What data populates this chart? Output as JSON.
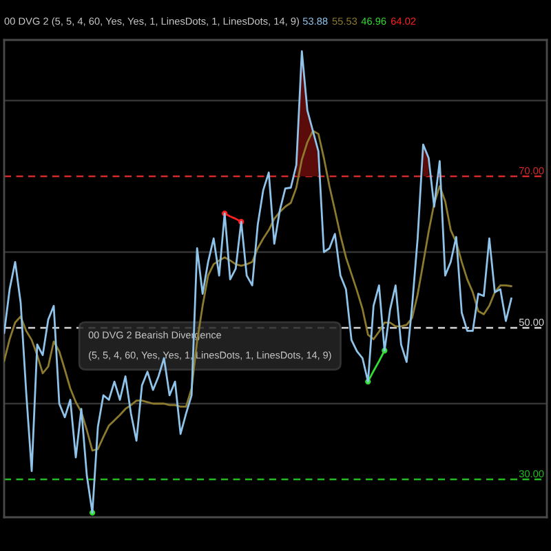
{
  "chart_data": {
    "type": "line",
    "title": "00 DVG 2 (5, 5, 4, 60, Yes, Yes, 1, LinesDots, 1, LinesDots, 14, 9)",
    "categories": [
      null,
      null,
      null,
      null,
      null,
      null,
      null,
      null,
      null,
      null,
      null,
      null,
      null,
      null,
      null,
      null,
      null,
      null,
      null,
      null,
      null,
      null,
      null,
      null,
      null,
      null,
      null,
      null,
      null,
      null,
      null,
      null,
      null,
      null,
      null,
      null,
      null,
      null,
      null,
      null,
      null,
      null,
      null,
      null,
      null,
      null,
      null,
      null,
      null,
      null,
      null,
      null,
      null,
      null,
      null,
      null,
      null,
      null,
      null,
      null,
      null,
      null,
      null,
      null,
      null,
      null,
      null,
      null,
      null,
      null,
      null,
      null,
      null,
      null,
      null,
      null,
      null,
      null,
      null,
      null,
      null,
      null,
      null,
      null,
      null,
      null,
      null,
      null,
      null,
      null,
      null,
      null,
      null
    ],
    "series": [
      {
        "name": "53.88",
        "color": "#8fc3ea",
        "values": [
          49.3,
          55.1,
          58.7,
          53.3,
          41.5,
          31.1,
          47.8,
          46.4,
          51.1,
          52.9,
          40,
          38.2,
          40.5,
          32.9,
          39.3,
          30.5,
          25.6,
          36.9,
          41.1,
          40.5,
          42.9,
          40.5,
          43.6,
          38.7,
          35.1,
          42.4,
          44.2,
          41.8,
          43.6,
          46,
          41.1,
          42.9,
          36,
          38.7,
          41.1,
          60.5,
          54.5,
          58.7,
          61.8,
          56.9,
          65.1,
          56.4,
          57.8,
          64.0,
          56.9,
          55.6,
          63.6,
          68.2,
          70.5,
          61.1,
          65.5,
          68.4,
          68.5,
          71.5,
          86.5,
          78.7,
          76,
          73.3,
          60,
          60.5,
          62.4,
          56.9,
          55.1,
          48.4,
          46.9,
          46,
          42.9,
          52.9,
          55.6,
          47.0,
          52.4,
          55.6,
          47.8,
          45.5,
          52.9,
          61.8,
          74.2,
          72.4,
          66,
          72,
          56.9,
          58.7,
          62,
          52,
          49.6,
          49.6,
          54.5,
          54.2,
          61.8,
          54.7,
          55.1,
          50.9,
          53.9
        ]
      },
      {
        "name": "55.53",
        "color": "#8c7a2e",
        "values": [
          45.6,
          48.5,
          50.7,
          51.5,
          49.6,
          48.4,
          46.4,
          44,
          44.9,
          48.2,
          46.9,
          44.5,
          42,
          40.2,
          38.9,
          36.5,
          33.8,
          34,
          35.6,
          37.1,
          37.8,
          38.5,
          39.3,
          39.8,
          40.4,
          40.4,
          40.2,
          40,
          40,
          40,
          39.8,
          39.8,
          39.6,
          39.6,
          42,
          48.2,
          52.9,
          56.9,
          58.4,
          58.9,
          59.3,
          58.9,
          58.4,
          58.2,
          58.4,
          58.7,
          60.5,
          61.8,
          62.9,
          64.4,
          65.3,
          66,
          66.5,
          68.5,
          72.2,
          74.5,
          76,
          75.6,
          72.4,
          68.7,
          65.5,
          62.2,
          59.3,
          57.1,
          54.9,
          52.5,
          49.1,
          48.5,
          49.5,
          50.7,
          50.7,
          50.2,
          50.2,
          50.4,
          51.3,
          54.4,
          58.5,
          62.7,
          66.4,
          68.7,
          66.7,
          62.9,
          61.3,
          58.7,
          56.4,
          54.7,
          52.2,
          51.8,
          52.9,
          54.7,
          55.6,
          55.6,
          55.5
        ]
      },
      {
        "name": "46.96",
        "color": "#33dd33",
        "marker": "circle",
        "values": [
          null,
          null,
          null,
          null,
          null,
          null,
          null,
          null,
          null,
          null,
          null,
          null,
          null,
          null,
          null,
          null,
          25.6,
          null,
          null,
          null,
          null,
          null,
          null,
          null,
          null,
          null,
          null,
          null,
          null,
          null,
          null,
          null,
          null,
          null,
          null,
          null,
          null,
          null,
          null,
          null,
          null,
          null,
          null,
          null,
          null,
          null,
          null,
          null,
          null,
          null,
          null,
          null,
          null,
          null,
          null,
          null,
          null,
          null,
          null,
          null,
          null,
          null,
          null,
          null,
          null,
          null,
          42.9,
          44.3,
          45.6,
          47.0,
          null,
          null,
          null,
          null,
          null,
          null,
          null,
          null,
          null,
          null,
          null,
          null,
          null,
          null,
          null,
          null,
          null,
          null,
          null,
          null,
          null,
          null,
          null
        ]
      },
      {
        "name": "64.02",
        "color": "#ff2020",
        "marker": "circle",
        "values": [
          null,
          null,
          null,
          null,
          null,
          null,
          null,
          null,
          null,
          null,
          null,
          null,
          null,
          null,
          null,
          null,
          null,
          null,
          null,
          null,
          null,
          null,
          null,
          null,
          null,
          null,
          null,
          null,
          null,
          null,
          null,
          null,
          null,
          null,
          null,
          null,
          null,
          null,
          null,
          null,
          65.1,
          64.7,
          64.4,
          64.0,
          null,
          null,
          null,
          null,
          null,
          null,
          null,
          null,
          null,
          null,
          null,
          null,
          null,
          null,
          null,
          null,
          null,
          null,
          null,
          null,
          null,
          null,
          null,
          null,
          null,
          null,
          null,
          null,
          null,
          null,
          null,
          null,
          null,
          null,
          null,
          null,
          null,
          null,
          null,
          null,
          null,
          null,
          null,
          null,
          null,
          null,
          null,
          null,
          null
        ]
      },
      {
        "color": "#5c0b0b",
        "type": "area",
        "values": [
          null,
          null,
          null,
          null,
          null,
          null,
          null,
          null,
          null,
          null,
          null,
          null,
          null,
          null,
          null,
          null,
          null,
          null,
          null,
          null,
          null,
          null,
          null,
          null,
          null,
          null,
          null,
          null,
          null,
          null,
          null,
          null,
          null,
          null,
          null,
          null,
          null,
          null,
          null,
          null,
          null,
          null,
          null,
          null,
          null,
          null,
          null,
          null,
          null,
          null,
          null,
          null,
          null,
          71.5,
          86.5,
          78.7,
          76,
          73.3,
          null,
          null,
          null,
          null,
          null,
          null,
          null,
          null,
          null,
          null,
          null,
          null,
          null,
          null,
          null,
          null,
          null,
          null,
          74.2,
          72.4,
          null,
          null,
          null,
          null,
          null,
          null,
          null,
          null,
          null,
          null,
          null,
          null,
          null,
          null,
          null
        ]
      }
    ],
    "ref_lines": [
      {
        "axis": "y",
        "value": 70,
        "label": "70.00",
        "color": "#d42a2a",
        "line_style": "dashed"
      },
      {
        "axis": "y",
        "value": 50,
        "label": "50.00",
        "color": "#d8d8d8",
        "line_style": "dashed"
      },
      {
        "axis": "y",
        "value": 30,
        "label": "30.00",
        "color": "#22bb22",
        "line_style": "dashed"
      }
    ],
    "annotations": [
      "00 DVG 2 Bearish Divergence",
      "(5, 5, 4, 60, Yes, Yes, 1, LinesDots, 1, LinesDots, 14, 9)"
    ],
    "ylim": [
      25,
      88
    ],
    "yticks": [
      {
        "value": 40,
        "label": null
      },
      {
        "value": 60,
        "label": null
      },
      {
        "value": 80,
        "label": null
      }
    ],
    "grid": "y",
    "tick_labels": false,
    "legend": "top right"
  }
}
